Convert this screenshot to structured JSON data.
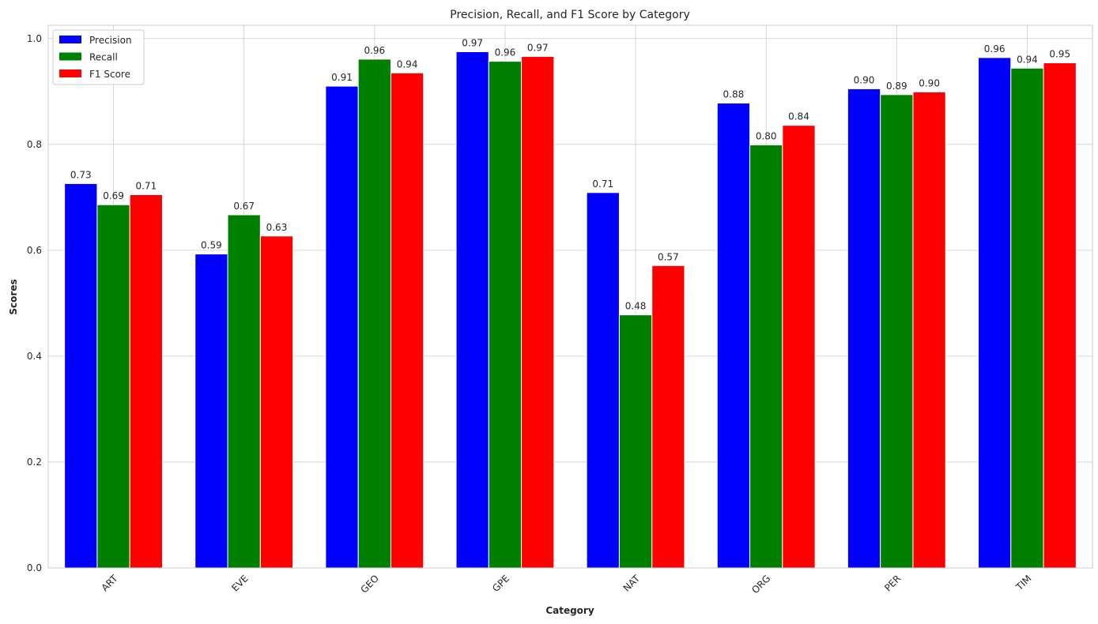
{
  "chart_data": {
    "type": "bar",
    "title": "Precision, Recall, and F1 Score by Category",
    "xlabel": "Category",
    "ylabel": "Scores",
    "categories": [
      "ART",
      "EVE",
      "GEO",
      "GPE",
      "NAT",
      "ORG",
      "PER",
      "TIM"
    ],
    "series": [
      {
        "name": "Precision",
        "color": "#0000ff",
        "values": [
          0.726,
          0.593,
          0.91,
          0.975,
          0.709,
          0.878,
          0.905,
          0.964
        ],
        "labels": [
          "0.73",
          "0.59",
          "0.91",
          "0.97",
          "0.71",
          "0.88",
          "0.90",
          "0.96"
        ]
      },
      {
        "name": "Recall",
        "color": "#008000",
        "values": [
          0.686,
          0.667,
          0.961,
          0.957,
          0.478,
          0.799,
          0.894,
          0.944
        ],
        "labels": [
          "0.69",
          "0.67",
          "0.96",
          "0.96",
          "0.48",
          "0.80",
          "0.89",
          "0.94"
        ]
      },
      {
        "name": "F1 Score",
        "color": "#ff0000",
        "values": [
          0.705,
          0.627,
          0.935,
          0.966,
          0.571,
          0.836,
          0.899,
          0.954
        ],
        "labels": [
          "0.71",
          "0.63",
          "0.94",
          "0.97",
          "0.57",
          "0.84",
          "0.90",
          "0.95"
        ]
      }
    ],
    "ylim": [
      0,
      1.025
    ],
    "yticks": [
      "0.0",
      "0.2",
      "0.4",
      "0.6",
      "0.8",
      "1.0"
    ],
    "grid": true,
    "legend_position": "upper-left",
    "xtick_rotation": 45
  }
}
